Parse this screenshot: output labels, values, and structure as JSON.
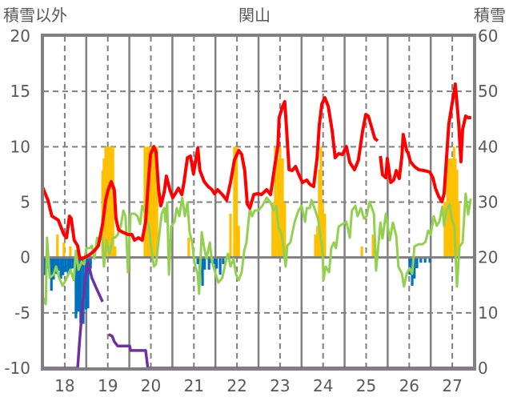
{
  "chart_data": {
    "type": "bar+line",
    "title": "関山",
    "ylabel_left": "積雪以外",
    "ylabel_right": "積雪",
    "xlim": [
      17.5,
      27.5
    ],
    "ylim_left": [
      -10,
      20
    ],
    "ylim_right": [
      0,
      60
    ],
    "yticks_left": [
      "20",
      "15",
      "10",
      "5",
      "0",
      "-5",
      "-10"
    ],
    "yticks_left_values": [
      20,
      15,
      10,
      5,
      0,
      -5,
      -10
    ],
    "yticks_right": [
      "60",
      "50",
      "40",
      "30",
      "20",
      "10",
      "0"
    ],
    "yticks_right_values": [
      60,
      50,
      40,
      30,
      20,
      10,
      0
    ],
    "xticks": [
      "18",
      "19",
      "20",
      "21",
      "22",
      "23",
      "24",
      "25",
      "26",
      "27"
    ],
    "xticks_values": [
      18,
      19,
      20,
      21,
      22,
      23,
      24,
      25,
      26,
      27
    ],
    "grid": true,
    "colors": {
      "axis": "#808080",
      "red": "#FF0000",
      "green": "#92D050",
      "blue": "#0070C0",
      "orange": "#FFC000",
      "purple": "#7030A0"
    },
    "bars_orange": [
      [
        17.83,
        2.07
      ],
      [
        17.98,
        1.35
      ],
      [
        18.13,
        1.0
      ],
      [
        18.88,
        7.85
      ],
      [
        18.91,
        8.94
      ],
      [
        18.95,
        10
      ],
      [
        19.01,
        10
      ],
      [
        19.06,
        10
      ],
      [
        19.12,
        10
      ],
      [
        19.17,
        1.0
      ],
      [
        19.86,
        10
      ],
      [
        19.92,
        10
      ],
      [
        19.97,
        10
      ],
      [
        20.03,
        10
      ],
      [
        20.08,
        10
      ],
      [
        20.14,
        10
      ],
      [
        20.88,
        1.8
      ],
      [
        21.85,
        3.95
      ],
      [
        21.94,
        10
      ],
      [
        21.99,
        10
      ],
      [
        22.04,
        2.86
      ],
      [
        22.83,
        4.96
      ],
      [
        22.89,
        10
      ],
      [
        22.95,
        8.94
      ],
      [
        23.0,
        10
      ],
      [
        23.06,
        8.94
      ],
      [
        23.11,
        4.96
      ],
      [
        23.82,
        2.07
      ],
      [
        23.87,
        2.86
      ],
      [
        23.91,
        7.93
      ],
      [
        23.95,
        10
      ],
      [
        23.99,
        4.96
      ],
      [
        24.04,
        3.95
      ],
      [
        24.9,
        1.0
      ],
      [
        25.16,
        2.07
      ],
      [
        26.83,
        5.03
      ],
      [
        26.89,
        8.94
      ],
      [
        26.94,
        8.94
      ],
      [
        27.0,
        8.94
      ],
      [
        27.04,
        10
      ],
      [
        27.07,
        8.94
      ],
      [
        27.11,
        7.93
      ],
      [
        27.15,
        5.03
      ]
    ],
    "bars_blue": [
      [
        17.52,
        -1.6
      ],
      [
        17.57,
        -1.3
      ],
      [
        17.63,
        -1.0
      ],
      [
        17.69,
        -3.0
      ],
      [
        17.74,
        -2.0
      ],
      [
        17.8,
        -1.5
      ],
      [
        17.85,
        -1.2
      ],
      [
        17.91,
        -1.9
      ],
      [
        17.96,
        -1.6
      ],
      [
        18.02,
        -1.3
      ],
      [
        18.08,
        -1.6
      ],
      [
        18.13,
        -1.1
      ],
      [
        18.19,
        -1.0
      ],
      [
        18.26,
        -5.5
      ],
      [
        18.32,
        -4.9
      ],
      [
        18.37,
        -5.9
      ],
      [
        18.43,
        -6.0
      ],
      [
        18.49,
        -4.7
      ],
      [
        18.54,
        -4.6
      ],
      [
        18.6,
        -1.0
      ],
      [
        21.09,
        -0.6
      ],
      [
        21.14,
        -1.55
      ],
      [
        21.2,
        -2.56
      ],
      [
        21.25,
        -1.1
      ],
      [
        21.35,
        -1.1
      ],
      [
        21.4,
        -0.5
      ],
      [
        21.48,
        -0.6
      ],
      [
        21.53,
        -1.0
      ],
      [
        21.61,
        -1.55
      ],
      [
        21.68,
        -0.6
      ],
      [
        26.01,
        -1.55
      ],
      [
        26.07,
        -2.56
      ],
      [
        26.12,
        -1.9
      ],
      [
        26.18,
        -0.97
      ],
      [
        26.27,
        -0.47
      ],
      [
        26.37,
        -0.47
      ],
      [
        26.48,
        -0.47
      ]
    ],
    "line_green": [
      [
        17.48,
        -3.5
      ],
      [
        17.56,
        -4.22
      ],
      [
        17.59,
        1.78
      ],
      [
        17.65,
        -1.83
      ],
      [
        17.74,
        -1.55
      ],
      [
        17.8,
        -0.82
      ],
      [
        17.87,
        -1.83
      ],
      [
        17.95,
        -2.56
      ],
      [
        18.02,
        -2.05
      ],
      [
        18.08,
        -1.55
      ],
      [
        18.13,
        -1.11
      ],
      [
        18.21,
        -2.05
      ],
      [
        18.26,
        0.62
      ],
      [
        18.32,
        -1.11
      ],
      [
        18.39,
        -0.39
      ],
      [
        18.45,
        -0.61
      ],
      [
        18.5,
        0.84
      ],
      [
        18.58,
        0.84
      ],
      [
        18.63,
        1.06
      ],
      [
        18.69,
        -0.1
      ],
      [
        18.75,
        1.78
      ],
      [
        18.8,
        1.35
      ],
      [
        18.86,
        2.29
      ],
      [
        18.91,
        -0.82
      ],
      [
        18.97,
        1.56
      ],
      [
        19.04,
        0.33
      ],
      [
        19.12,
        1.78
      ],
      [
        19.17,
        1.78
      ],
      [
        19.23,
        2.07
      ],
      [
        19.3,
        2.79
      ],
      [
        19.36,
        4.24
      ],
      [
        19.41,
        3.73
      ],
      [
        19.47,
        -1.33
      ],
      [
        19.53,
        3.95
      ],
      [
        19.62,
        3.95
      ],
      [
        19.69,
        3.73
      ],
      [
        19.75,
        3.01
      ],
      [
        19.8,
        4.67
      ],
      [
        19.9,
        3.73
      ],
      [
        19.97,
        2.5
      ],
      [
        19.99,
        1.35
      ],
      [
        20.07,
        -0.82
      ],
      [
        20.12,
        -0.61
      ],
      [
        20.18,
        1.56
      ],
      [
        20.25,
        3.95
      ],
      [
        20.31,
        4.46
      ],
      [
        20.34,
        3.23
      ],
      [
        20.38,
        4.96
      ],
      [
        20.42,
        -1.55
      ],
      [
        20.47,
        2.79
      ],
      [
        20.55,
        3.23
      ],
      [
        20.6,
        4.46
      ],
      [
        20.66,
        3.73
      ],
      [
        20.73,
        5.4
      ],
      [
        20.79,
        3.73
      ],
      [
        20.85,
        4.96
      ],
      [
        20.9,
        2.29
      ],
      [
        20.96,
        1.35
      ],
      [
        21.01,
        -0.39
      ],
      [
        21.09,
        -1.55
      ],
      [
        21.12,
        -3.28
      ],
      [
        21.18,
        2.29
      ],
      [
        21.24,
        0.84
      ],
      [
        21.29,
        -0.1
      ],
      [
        21.37,
        1.35
      ],
      [
        21.42,
        -0.39
      ],
      [
        21.51,
        -1.55
      ],
      [
        21.57,
        -2.27
      ],
      [
        21.66,
        -1.83
      ],
      [
        21.74,
        -0.39
      ],
      [
        21.79,
        0.33
      ],
      [
        21.85,
        -0.82
      ],
      [
        21.92,
        -0.1
      ],
      [
        21.98,
        -1.55
      ],
      [
        22.04,
        -2.05
      ],
      [
        22.11,
        -1.33
      ],
      [
        22.17,
        0.62
      ],
      [
        22.22,
        1.35
      ],
      [
        22.3,
        4.46
      ],
      [
        22.35,
        3.73
      ],
      [
        22.41,
        4.24
      ],
      [
        22.5,
        4.24
      ],
      [
        22.59,
        4.67
      ],
      [
        22.69,
        5.4
      ],
      [
        22.78,
        4.96
      ],
      [
        22.85,
        4.24
      ],
      [
        22.91,
        4.67
      ],
      [
        22.96,
        2.79
      ],
      [
        23.04,
        2.07
      ],
      [
        23.08,
        0.84
      ],
      [
        23.13,
        -0.82
      ],
      [
        23.17,
        1.06
      ],
      [
        23.24,
        1.35
      ],
      [
        23.34,
        3.23
      ],
      [
        23.43,
        4.24
      ],
      [
        23.5,
        4.67
      ],
      [
        23.58,
        3.23
      ],
      [
        23.62,
        4.46
      ],
      [
        23.69,
        4.46
      ],
      [
        23.73,
        5.18
      ],
      [
        23.8,
        4.46
      ],
      [
        23.88,
        3.52
      ],
      [
        23.93,
        2.29
      ],
      [
        23.99,
        0.33
      ],
      [
        24.01,
        -2.05
      ],
      [
        24.06,
        -0.82
      ],
      [
        24.14,
        -1.33
      ],
      [
        24.19,
        0.84
      ],
      [
        24.25,
        1.35
      ],
      [
        24.3,
        0.84
      ],
      [
        24.36,
        2.79
      ],
      [
        24.45,
        3.01
      ],
      [
        24.54,
        3.23
      ],
      [
        24.62,
        1.78
      ],
      [
        24.67,
        4.24
      ],
      [
        24.75,
        4.67
      ],
      [
        24.8,
        3.73
      ],
      [
        24.88,
        4.46
      ],
      [
        24.95,
        3.52
      ],
      [
        25.01,
        3.73
      ],
      [
        25.08,
        5.03
      ],
      [
        25.18,
        3.95
      ],
      [
        25.23,
        -1.18
      ],
      [
        25.33,
        3.15
      ],
      [
        25.38,
        1.71
      ],
      [
        25.46,
        3.95
      ],
      [
        25.55,
        1.56
      ],
      [
        25.62,
        3.15
      ],
      [
        25.7,
        1.92
      ],
      [
        25.75,
        -0.82
      ],
      [
        25.83,
        -1.47
      ],
      [
        25.88,
        -2.63
      ],
      [
        25.94,
        -1.47
      ],
      [
        26.01,
        -0.97
      ],
      [
        26.07,
        -1.47
      ],
      [
        26.12,
        0.99
      ],
      [
        26.22,
        1.2
      ],
      [
        26.31,
        1.2
      ],
      [
        26.38,
        1.42
      ],
      [
        26.44,
        2.43
      ],
      [
        26.5,
        2.07
      ],
      [
        26.57,
        3.73
      ],
      [
        26.64,
        2.86
      ],
      [
        26.7,
        3.23
      ],
      [
        26.77,
        4.6
      ],
      [
        26.81,
        2.86
      ],
      [
        26.87,
        4.31
      ],
      [
        26.94,
        4.82
      ],
      [
        26.99,
        3.38
      ],
      [
        27.05,
        2.86
      ],
      [
        27.11,
        -2.63
      ],
      [
        27.17,
        0.99
      ],
      [
        27.24,
        1.35
      ],
      [
        27.31,
        5.76
      ],
      [
        27.37,
        3.88
      ],
      [
        27.43,
        5.32
      ]
    ],
    "line_red": [
      [
        17.48,
        6.4
      ],
      [
        17.61,
        5.18
      ],
      [
        17.7,
        3.74
      ],
      [
        17.85,
        3.37
      ],
      [
        17.98,
        2.07
      ],
      [
        18.04,
        1.78
      ],
      [
        18.11,
        3.73
      ],
      [
        18.15,
        3.52
      ],
      [
        18.22,
        1.56
      ],
      [
        18.3,
        1.06
      ],
      [
        18.35,
        -0.1
      ],
      [
        18.45,
        -0.03
      ],
      [
        18.58,
        0.26
      ],
      [
        18.69,
        0.62
      ],
      [
        18.78,
        1.06
      ],
      [
        18.88,
        3.0
      ],
      [
        18.95,
        5.18
      ],
      [
        19.01,
        6.12
      ],
      [
        19.08,
        6.84
      ],
      [
        19.15,
        6.12
      ],
      [
        19.19,
        3.52
      ],
      [
        19.25,
        2.5
      ],
      [
        19.34,
        2.29
      ],
      [
        19.47,
        2.07
      ],
      [
        19.56,
        2.07
      ],
      [
        19.62,
        1.56
      ],
      [
        19.71,
        1.78
      ],
      [
        19.8,
        1.56
      ],
      [
        19.88,
        3.23
      ],
      [
        19.93,
        6.12
      ],
      [
        19.99,
        9.3
      ],
      [
        20.07,
        10.02
      ],
      [
        20.12,
        9.52
      ],
      [
        20.18,
        6.12
      ],
      [
        20.23,
        4.67
      ],
      [
        20.31,
        5.9
      ],
      [
        20.36,
        7.35
      ],
      [
        20.44,
        6.12
      ],
      [
        20.51,
        5.4
      ],
      [
        20.59,
        5.9
      ],
      [
        20.64,
        6.26
      ],
      [
        20.72,
        5.68
      ],
      [
        20.77,
        6.77
      ],
      [
        20.85,
        9.01
      ],
      [
        20.92,
        9.16
      ],
      [
        20.99,
        7.56
      ],
      [
        21.09,
        9.88
      ],
      [
        21.14,
        7.85
      ],
      [
        21.24,
        6.84
      ],
      [
        21.33,
        6.41
      ],
      [
        21.42,
        6.12
      ],
      [
        21.48,
        5.76
      ],
      [
        21.55,
        6.12
      ],
      [
        21.66,
        5.68
      ],
      [
        21.76,
        5.18
      ],
      [
        21.85,
        6.77
      ],
      [
        21.94,
        8.79
      ],
      [
        22.04,
        9.66
      ],
      [
        22.11,
        9.3
      ],
      [
        22.18,
        7.85
      ],
      [
        22.24,
        4.82
      ],
      [
        22.3,
        4.46
      ],
      [
        22.39,
        5.68
      ],
      [
        22.48,
        5.76
      ],
      [
        22.57,
        5.68
      ],
      [
        22.69,
        6.12
      ],
      [
        22.78,
        5.68
      ],
      [
        22.87,
        8.07
      ],
      [
        22.95,
        10.02
      ],
      [
        22.98,
        12.63
      ],
      [
        23.06,
        13.64
      ],
      [
        23.11,
        14.07
      ],
      [
        23.15,
        11.69
      ],
      [
        23.21,
        7.93
      ],
      [
        23.28,
        7.85
      ],
      [
        23.36,
        8.22
      ],
      [
        23.43,
        7.56
      ],
      [
        23.52,
        6.77
      ],
      [
        23.62,
        6.99
      ],
      [
        23.69,
        6.62
      ],
      [
        23.78,
        6.41
      ],
      [
        23.86,
        9.01
      ],
      [
        23.91,
        11.9
      ],
      [
        23.97,
        13.85
      ],
      [
        24.04,
        14.43
      ],
      [
        24.12,
        13.64
      ],
      [
        24.21,
        11.47
      ],
      [
        24.28,
        9.01
      ],
      [
        24.36,
        9.37
      ],
      [
        24.45,
        9.3
      ],
      [
        24.54,
        10.02
      ],
      [
        24.62,
        8.58
      ],
      [
        24.73,
        7.93
      ],
      [
        24.82,
        8.79
      ],
      [
        24.92,
        11.47
      ],
      [
        24.99,
        12.91
      ],
      [
        25.05,
        12.77
      ],
      [
        25.12,
        11.83
      ],
      [
        25.2,
        10.75
      ],
      [
        25.27,
        10.53
      ],
      null,
      [
        25.33,
        9.16
      ],
      [
        25.38,
        7.49
      ],
      [
        25.46,
        7.2
      ],
      [
        25.49,
        8.94
      ],
      [
        25.57,
        6.77
      ],
      [
        25.64,
        6.99
      ],
      [
        25.7,
        7.85
      ],
      [
        25.77,
        7.13
      ],
      [
        25.83,
        9.16
      ],
      [
        25.86,
        11.11
      ],
      [
        25.94,
        9.66
      ],
      [
        25.98,
        9.37
      ],
      [
        26.03,
        8.65
      ],
      [
        26.12,
        8.22
      ],
      [
        26.22,
        7.93
      ],
      [
        26.35,
        7.85
      ],
      [
        26.48,
        7.71
      ],
      [
        26.55,
        7.2
      ],
      [
        26.61,
        6.26
      ],
      [
        26.68,
        5.54
      ],
      [
        26.76,
        5.03
      ],
      [
        26.81,
        5.76
      ],
      [
        26.87,
        9.16
      ],
      [
        26.92,
        12.05
      ],
      [
        26.96,
        12.99
      ],
      [
        27.04,
        14.94
      ],
      [
        27.07,
        15.66
      ],
      [
        27.13,
        12.99
      ],
      [
        27.15,
        12.05
      ],
      [
        27.2,
        8.65
      ],
      [
        27.24,
        11.54
      ],
      [
        27.31,
        12.77
      ],
      [
        27.37,
        12.63
      ],
      [
        27.44,
        12.63
      ]
    ],
    "line_purple_right_axis": [
      [
        17.48,
        0
      ],
      [
        18.3,
        0
      ],
      [
        18.35,
        5.3
      ],
      [
        18.41,
        11.1
      ],
      [
        18.49,
        16.9
      ],
      [
        18.54,
        19.1
      ],
      [
        18.63,
        16.3
      ],
      [
        18.73,
        14.5
      ],
      [
        18.82,
        13.0
      ],
      [
        18.88,
        12.0
      ],
      null,
      [
        19.02,
        6.1
      ],
      [
        19.1,
        5.8
      ],
      [
        19.15,
        4.8
      ],
      [
        19.23,
        4.0
      ],
      [
        19.51,
        4.0
      ],
      [
        19.53,
        3.2
      ],
      [
        19.88,
        3.2
      ],
      [
        19.93,
        0
      ],
      [
        27.5,
        0
      ]
    ]
  }
}
